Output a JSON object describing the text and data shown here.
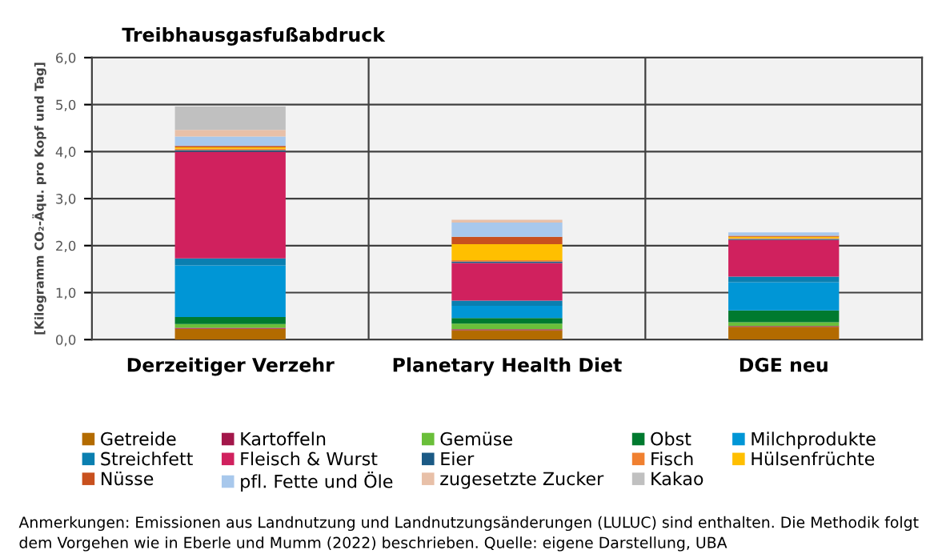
{
  "chart_data": {
    "type": "bar",
    "stacked": true,
    "title": "Treibhausgasfußabdruck",
    "ylabel": "[Kilogramm CO₂-Äqu. pro Kopf und Tag]",
    "categories": [
      "Derzeitiger Verzehr",
      "Planetary Health Diet",
      "DGE neu"
    ],
    "series": [
      {
        "name": "Getreide",
        "color": "#b36b00",
        "values": [
          0.23,
          0.2,
          0.27
        ]
      },
      {
        "name": "Kartoffeln",
        "color": "#a3174a",
        "values": [
          0.02,
          0.02,
          0.02
        ]
      },
      {
        "name": "Gemüse",
        "color": "#6abf3a",
        "values": [
          0.08,
          0.12,
          0.08
        ]
      },
      {
        "name": "Obst",
        "color": "#007a2f",
        "values": [
          0.15,
          0.12,
          0.25
        ]
      },
      {
        "name": "Milchprodukte",
        "color": "#0096d6",
        "values": [
          1.1,
          0.26,
          0.6
        ]
      },
      {
        "name": "Streichfett",
        "color": "#0a7fb0",
        "values": [
          0.15,
          0.11,
          0.12
        ]
      },
      {
        "name": "Fleisch & Wurst",
        "color": "#d0215e",
        "values": [
          2.27,
          0.8,
          0.78
        ]
      },
      {
        "name": "Eier",
        "color": "#1b5a85",
        "values": [
          0.03,
          0.03,
          0.02
        ]
      },
      {
        "name": "Fisch",
        "color": "#f08030",
        "values": [
          0.03,
          0.03,
          0.02
        ]
      },
      {
        "name": "Hülsenfrüchte",
        "color": "#ffbf00",
        "values": [
          0.03,
          0.34,
          0.03
        ]
      },
      {
        "name": "Nüsse",
        "color": "#c8501e",
        "values": [
          0.03,
          0.16,
          0.02
        ]
      },
      {
        "name": "pfl. Fette und Öle",
        "color": "#a8c8ec",
        "values": [
          0.2,
          0.3,
          0.07
        ]
      },
      {
        "name": "zugesetzte Zucker",
        "color": "#e8c0a8",
        "values": [
          0.14,
          0.06,
          null
        ]
      },
      {
        "name": "Kakao",
        "color": "#c0c0c0",
        "values": [
          0.5,
          null,
          null
        ]
      }
    ],
    "ylim": [
      0,
      6
    ],
    "yticks": [
      {
        "value": 0,
        "label": "0,0"
      },
      {
        "value": 1,
        "label": "1,0"
      },
      {
        "value": 2,
        "label": "2,0"
      },
      {
        "value": 3,
        "label": "3,0"
      },
      {
        "value": 4,
        "label": "4,0"
      },
      {
        "value": 5,
        "label": "5,0"
      },
      {
        "value": 6,
        "label": "6,0"
      }
    ],
    "grid": "y",
    "legend": "bottom",
    "annotations": [
      "Anmerkungen: Emissionen aus Landnutzung und Landnutzungsänderungen (LULUC) sind enthalten. Die Methodik folgt dem Vorgehen wie in Eberle und Mumm (2022) beschrieben. Quelle: eigene Darstellung, UBA"
    ]
  }
}
